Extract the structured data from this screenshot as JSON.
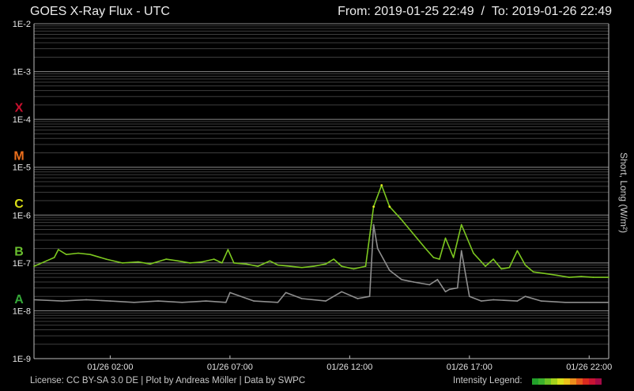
{
  "header": {
    "title": "GOES X-Ray Flux - UTC",
    "range": {
      "from_label": "From:",
      "from": "2019-01-25 22:49",
      "sep": "/",
      "to_label": "To:",
      "to": "2019-01-26 22:49"
    }
  },
  "side_label": "Short, Long (W/m²)",
  "footer": {
    "license": "License: CC BY-SA 3.0 DE | Plot by Andreas Möller | Data by SWPC",
    "legend_label": "Intensity Legend:"
  },
  "colors": {
    "background": "#000000",
    "grid_major": "#8a8a8a",
    "grid_minor": "#3e3e3e",
    "short": "#8f8f8f",
    "long": "#7dc820",
    "long_peak": "#e5ed1f",
    "class_X": "#c8102e",
    "class_M": "#ec6f1d",
    "class_C": "#d9dd16",
    "class_B": "#6abf2f",
    "class_A": "#35a838",
    "legend": [
      "#22a02a",
      "#3cb02c",
      "#6dc224",
      "#a4d21c",
      "#d8e01a",
      "#eac21a",
      "#ec8e1c",
      "#e55a1c",
      "#d92a1e",
      "#c81434",
      "#a40a46"
    ]
  },
  "chart_data": {
    "type": "line",
    "title": "GOES X-Ray Flux - UTC",
    "xlabel": "",
    "ylabel": "Short, Long (W/m²)",
    "y_scale": "log",
    "ylim": [
      1e-09,
      0.01
    ],
    "xlim": [
      "2019-01-25 22:49",
      "2019-01-26 22:49"
    ],
    "y_ticks": [
      "1E-2",
      "1E-3",
      "1E-4",
      "1E-5",
      "1E-6",
      "1E-7",
      "1E-8",
      "1E-9"
    ],
    "x_ticks": [
      {
        "label": "01/26 02:00",
        "t": "2019-01-26 02:00"
      },
      {
        "label": "01/26 07:00",
        "t": "2019-01-26 07:00"
      },
      {
        "label": "01/26 12:00",
        "t": "2019-01-26 12:00"
      },
      {
        "label": "01/26 17:00",
        "t": "2019-01-26 17:00"
      },
      {
        "label": "01/26 22:00",
        "t": "2019-01-26 22:00"
      }
    ],
    "class_labels": [
      {
        "label": "X",
        "flux": 0.00018
      },
      {
        "label": "M",
        "flux": 1.8e-05
      },
      {
        "label": "C",
        "flux": 1.8e-06
      },
      {
        "label": "B",
        "flux": 1.8e-07
      },
      {
        "label": "A",
        "flux": 1.8e-08
      }
    ],
    "grid": true,
    "series": [
      {
        "name": "Long",
        "x": [
          "2019-01-25 22:49",
          "2019-01-25 23:20",
          "2019-01-25 23:40",
          "2019-01-25 23:50",
          "2019-01-26 00:10",
          "2019-01-26 00:40",
          "2019-01-26 01:10",
          "2019-01-26 01:50",
          "2019-01-26 02:30",
          "2019-01-26 03:10",
          "2019-01-26 03:40",
          "2019-01-26 04:20",
          "2019-01-26 04:50",
          "2019-01-26 05:20",
          "2019-01-26 05:50",
          "2019-01-26 06:20",
          "2019-01-26 06:40",
          "2019-01-26 06:55",
          "2019-01-26 07:10",
          "2019-01-26 07:40",
          "2019-01-26 08:10",
          "2019-01-26 08:40",
          "2019-01-26 09:00",
          "2019-01-26 09:30",
          "2019-01-26 10:00",
          "2019-01-26 10:30",
          "2019-01-26 11:00",
          "2019-01-26 11:20",
          "2019-01-26 11:40",
          "2019-01-26 12:10",
          "2019-01-26 12:40",
          "2019-01-26 13:00",
          "2019-01-26 13:20",
          "2019-01-26 13:40",
          "2019-01-26 14:10",
          "2019-01-26 14:40",
          "2019-01-26 15:10",
          "2019-01-26 15:30",
          "2019-01-26 15:45",
          "2019-01-26 16:00",
          "2019-01-26 16:20",
          "2019-01-26 16:40",
          "2019-01-26 17:10",
          "2019-01-26 17:40",
          "2019-01-26 18:00",
          "2019-01-26 18:20",
          "2019-01-26 18:40",
          "2019-01-26 19:00",
          "2019-01-26 19:20",
          "2019-01-26 19:40",
          "2019-01-26 20:10",
          "2019-01-26 20:40",
          "2019-01-26 21:10",
          "2019-01-26 21:40",
          "2019-01-26 22:10",
          "2019-01-26 22:49"
        ],
        "values": [
          8.5e-08,
          1.1e-07,
          1.3e-07,
          1.9e-07,
          1.5e-07,
          1.6e-07,
          1.5e-07,
          1.2e-07,
          1e-07,
          1.05e-07,
          9.5e-08,
          1.2e-07,
          1.1e-07,
          1e-07,
          1.05e-07,
          1.2e-07,
          1e-07,
          1.9e-07,
          1e-07,
          9.5e-08,
          8.5e-08,
          1.1e-07,
          9e-08,
          8.5e-08,
          8e-08,
          8.5e-08,
          9.5e-08,
          1.2e-07,
          8.5e-08,
          7.5e-08,
          8.5e-08,
          1.5e-06,
          4.2e-06,
          1.5e-06,
          8e-07,
          4e-07,
          2e-07,
          1.3e-07,
          1.2e-07,
          3.3e-07,
          1.3e-07,
          6.3e-07,
          1.6e-07,
          8.5e-08,
          1.2e-07,
          7.5e-08,
          8e-08,
          1.8e-07,
          9e-08,
          6.5e-08,
          6e-08,
          5.5e-08,
          5e-08,
          5.2e-08,
          5e-08,
          5e-08
        ]
      },
      {
        "name": "Short",
        "x": [
          "2019-01-25 22:49",
          "2019-01-26 00:00",
          "2019-01-26 01:00",
          "2019-01-26 02:00",
          "2019-01-26 03:00",
          "2019-01-26 04:00",
          "2019-01-26 05:00",
          "2019-01-26 06:00",
          "2019-01-26 06:50",
          "2019-01-26 07:00",
          "2019-01-26 08:00",
          "2019-01-26 09:00",
          "2019-01-26 09:20",
          "2019-01-26 10:00",
          "2019-01-26 11:00",
          "2019-01-26 11:40",
          "2019-01-26 12:20",
          "2019-01-26 12:50",
          "2019-01-26 13:00",
          "2019-01-26 13:10",
          "2019-01-26 13:40",
          "2019-01-26 14:10",
          "2019-01-26 14:40",
          "2019-01-26 15:20",
          "2019-01-26 15:40",
          "2019-01-26 16:00",
          "2019-01-26 16:10",
          "2019-01-26 16:30",
          "2019-01-26 16:40",
          "2019-01-26 17:00",
          "2019-01-26 17:30",
          "2019-01-26 18:00",
          "2019-01-26 19:00",
          "2019-01-26 19:20",
          "2019-01-26 20:00",
          "2019-01-26 21:00",
          "2019-01-26 22:00",
          "2019-01-26 22:49"
        ],
        "values": [
          1.7e-08,
          1.6e-08,
          1.7e-08,
          1.6e-08,
          1.5e-08,
          1.6e-08,
          1.5e-08,
          1.6e-08,
          1.5e-08,
          2.4e-08,
          1.6e-08,
          1.5e-08,
          2.4e-08,
          1.8e-08,
          1.6e-08,
          2.5e-08,
          1.8e-08,
          2e-08,
          6.3e-07,
          2e-07,
          7e-08,
          4.5e-08,
          4e-08,
          3.5e-08,
          4.5e-08,
          2.5e-08,
          2.8e-08,
          3e-08,
          1.8e-07,
          2e-08,
          1.6e-08,
          1.7e-08,
          1.6e-08,
          2e-08,
          1.6e-08,
          1.5e-08,
          1.5e-08,
          1.5e-08
        ]
      }
    ]
  }
}
